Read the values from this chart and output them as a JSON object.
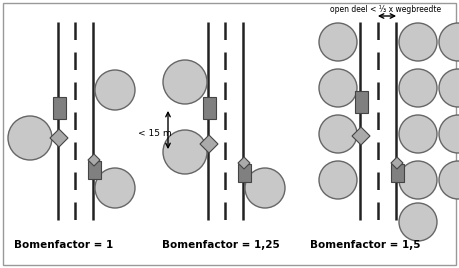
{
  "tree_color": "#c8c8c8",
  "tree_edge_color": "#666666",
  "road_line_color": "#222222",
  "box_color_dark": "#808080",
  "box_color_light": "#aaaaaa",
  "diamond_color": "#aaaaaa",
  "labels": [
    "Bomenfactor = 1",
    "Bomenfactor = 1,25",
    "Bomenfactor = 1,5"
  ],
  "annotation_text": "< 15 m",
  "annotation_text2": "open deel < ⅓ x wegbreedte"
}
